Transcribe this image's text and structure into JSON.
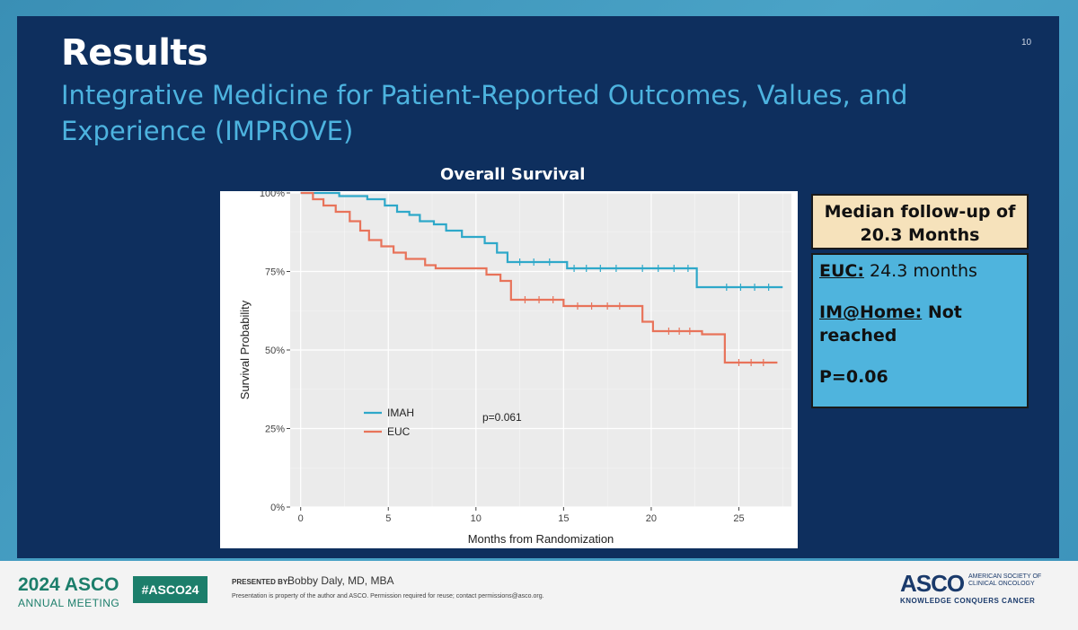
{
  "slide": {
    "page_number": "10",
    "title": "Results",
    "subtitle": "Integrative Medicine for Patient-Reported Outcomes, Values, and Experience (IMPROVE)"
  },
  "chart_data": {
    "type": "line",
    "title": "Overall Survival",
    "xlabel": "Months from Randomization",
    "ylabel": "Survival Probability",
    "xlim": [
      -0.6,
      28
    ],
    "ylim": [
      0,
      1
    ],
    "x_ticks": [
      0,
      5,
      10,
      15,
      20,
      25
    ],
    "y_ticks": [
      0,
      0.25,
      0.5,
      0.75,
      1.0
    ],
    "y_tick_labels": [
      "0%",
      "25%",
      "50%",
      "75%",
      "100%"
    ],
    "annotation": "p=0.061",
    "colors": {
      "IMAH": "#2ea8c9",
      "EUC": "#e8735a"
    },
    "series": [
      {
        "name": "IMAH",
        "step_x": [
          0,
          2.2,
          3.8,
          4.8,
          5.5,
          6.2,
          6.8,
          7.6,
          8.3,
          9.2,
          10.5,
          11.2,
          11.8,
          15.2,
          22.6,
          27.5
        ],
        "step_y": [
          1.0,
          0.99,
          0.98,
          0.96,
          0.94,
          0.93,
          0.91,
          0.9,
          0.88,
          0.86,
          0.84,
          0.81,
          0.78,
          0.76,
          0.7,
          0.7
        ],
        "censor_x": [
          12.5,
          13.3,
          14.2,
          15.6,
          16.3,
          17.1,
          18.0,
          19.5,
          20.4,
          21.3,
          22.1,
          24.3,
          25.1,
          25.9,
          26.7
        ]
      },
      {
        "name": "EUC",
        "step_x": [
          0,
          0.7,
          1.3,
          2.0,
          2.8,
          3.4,
          3.9,
          4.6,
          5.3,
          6.0,
          7.1,
          7.7,
          10.6,
          11.4,
          12.0,
          15.0,
          19.5,
          20.1,
          22.9,
          24.2,
          27.2
        ],
        "step_y": [
          1.0,
          0.98,
          0.96,
          0.94,
          0.91,
          0.88,
          0.85,
          0.83,
          0.81,
          0.79,
          0.77,
          0.76,
          0.74,
          0.72,
          0.66,
          0.64,
          0.59,
          0.56,
          0.55,
          0.46,
          0.46
        ],
        "censor_x": [
          12.8,
          13.6,
          14.4,
          15.8,
          16.6,
          17.5,
          18.2,
          21.0,
          21.6,
          22.2,
          25.0,
          25.7,
          26.4
        ]
      }
    ]
  },
  "info_boxes": {
    "followup_line1": "Median follow-up of",
    "followup_line2": "20.3 Months",
    "euc_label": "EUC:",
    "euc_value": " 24.3 months",
    "imhome_label": "IM@Home:",
    "imhome_value": " Not reached",
    "p_value": "P=0.06"
  },
  "footer": {
    "year_asco": "2024 ASCO",
    "annual_meeting": "ANNUAL MEETING",
    "hashtag": "#ASCO24",
    "presented_by": "PRESENTED BY:",
    "presenter": "Bobby Daly, MD, MBA",
    "property_note": "Presentation is property of the author and ASCO. Permission required for reuse; contact permissions@asco.org.",
    "asco_logo": "ASCO",
    "society_line1": "AMERICAN SOCIETY OF",
    "society_line2": "CLINICAL ONCOLOGY",
    "tagline": "KNOWLEDGE CONQUERS CANCER"
  }
}
